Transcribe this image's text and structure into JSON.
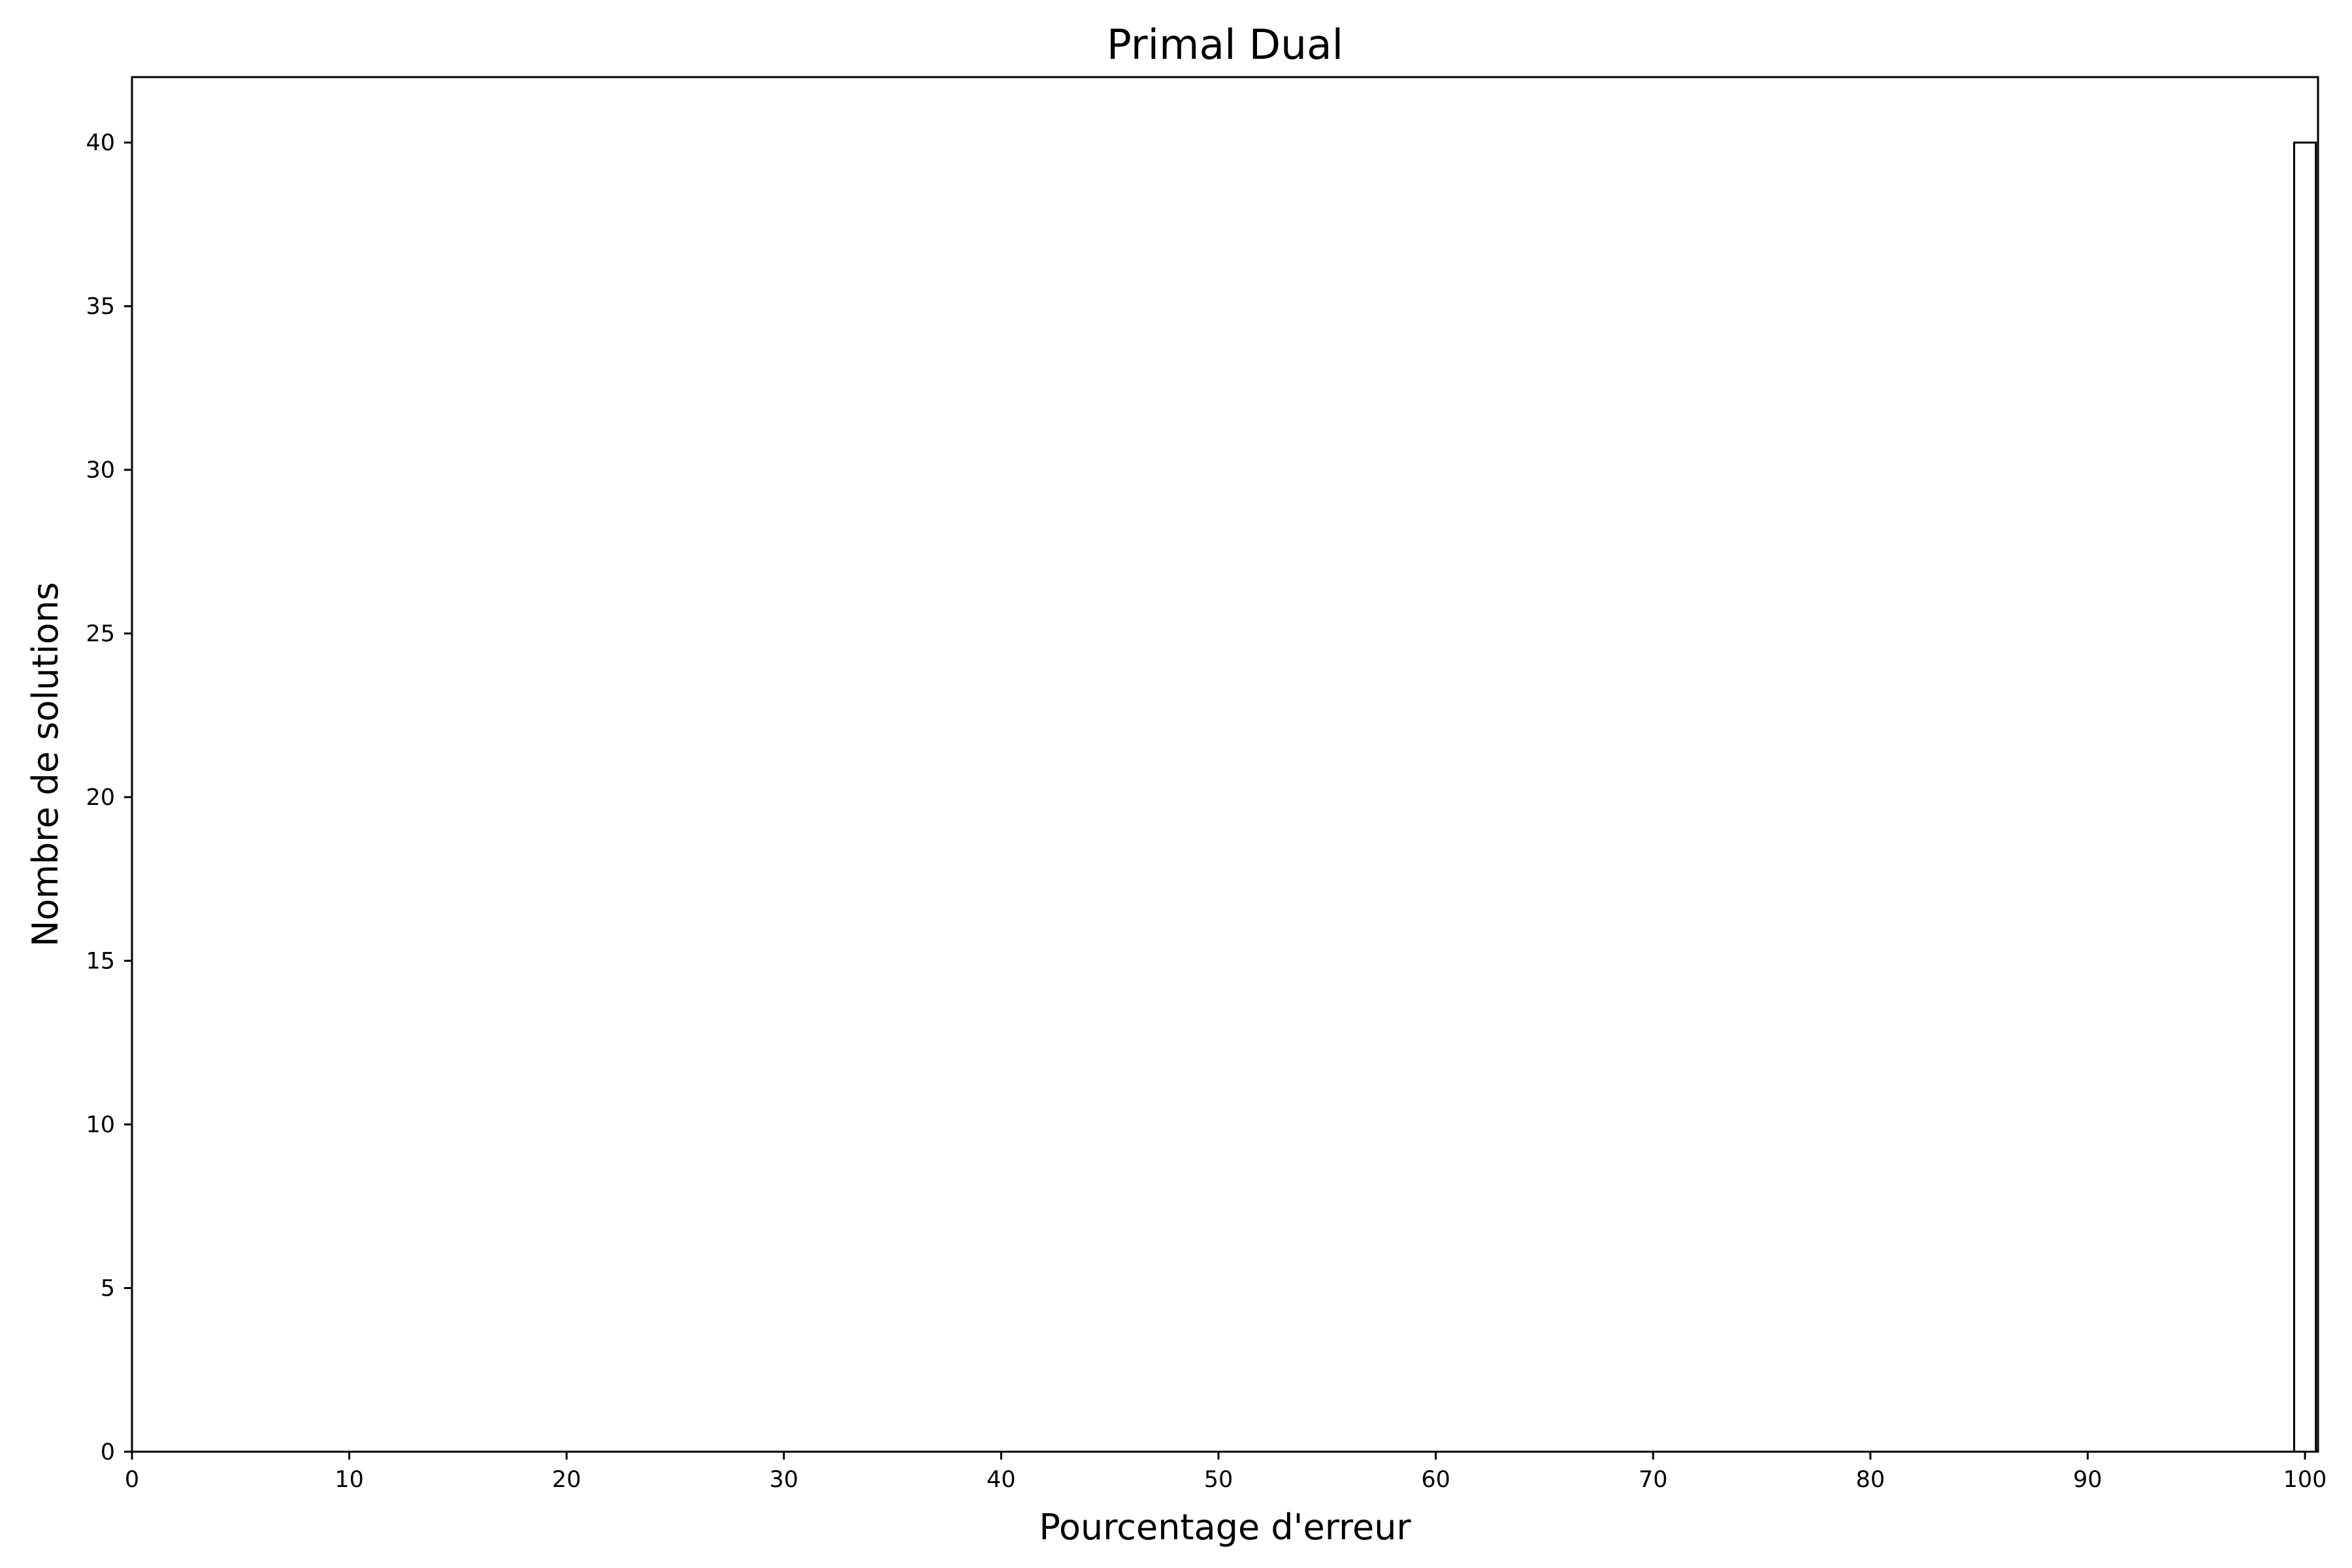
{
  "chart_data": {
    "type": "bar",
    "title": "Primal Dual",
    "xlabel": "Pourcentage d'erreur",
    "ylabel": "Nombre de solutions",
    "xlim": [
      0,
      100.6
    ],
    "ylim": [
      0,
      42
    ],
    "xticks": [
      0,
      10,
      20,
      30,
      40,
      50,
      60,
      70,
      80,
      90,
      100
    ],
    "yticks": [
      0,
      5,
      10,
      15,
      20,
      25,
      30,
      35,
      40
    ],
    "bins": [
      {
        "x0": 99.5,
        "x1": 100.5,
        "value": 40
      }
    ],
    "grid": false,
    "legend": "none",
    "colors": {
      "bar_fill": "#ffffff",
      "bar_edge": "#000000",
      "axes": "#000000"
    }
  }
}
